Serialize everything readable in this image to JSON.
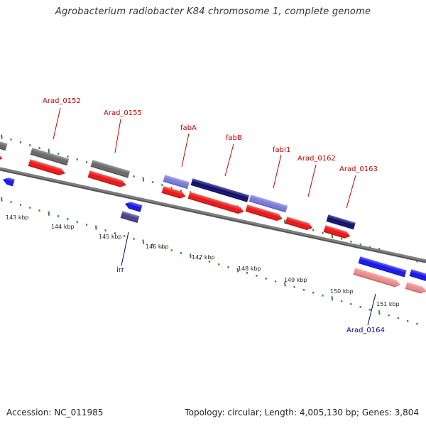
{
  "title": "Agrobacterium radiobacter K84 chromosome 1, complete genome",
  "footer": {
    "accession": "Accession: NC_011985",
    "summary": "Topology: circular; Length: 4,005,130 bp; Genes: 3,804"
  },
  "colors": {
    "backbone": "#7f7f7f",
    "tick": "#2e8b2e",
    "gene_forward": "#ee1111",
    "gene_reverse": "#1111ee",
    "gene_dark": "#0a0a6e",
    "gene_light": "#7777dd",
    "gene_gray": "#666666",
    "gene_pink": "#ee8888",
    "label_forward": "#cc0000",
    "label_reverse": "#000099"
  },
  "scale": {
    "tick_labels": [
      "143 kbp",
      "144 kbp",
      "145 kbp",
      "146 kbp",
      "147 kbp",
      "148 kbp",
      "149 kbp",
      "150 kbp",
      "151 kbp"
    ]
  },
  "gene_labels": {
    "arad_0152": "Arad_0152",
    "arad_0155": "Arad_0155",
    "fabA": "fabA",
    "fabB": "fabB",
    "fabI1": "fabI1",
    "arad_0162": "Arad_0162",
    "arad_0163": "Arad_0163",
    "irr": "irr",
    "arad_0164": "Arad_0164"
  }
}
